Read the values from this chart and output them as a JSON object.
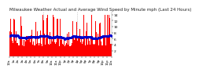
{
  "title": "Milwaukee Weather Actual and Average Wind Speed by Minute mph (Last 24 Hours)",
  "n_points": 1440,
  "bar_color": "#ff0000",
  "line_color": "#0000cc",
  "background_color": "#ffffff",
  "plot_bg_color": "#ffffff",
  "ylim": [
    0,
    15
  ],
  "yticks": [
    2,
    4,
    6,
    8,
    10,
    12,
    14
  ],
  "title_fontsize": 4.0,
  "tick_fontsize": 3.2,
  "grid_color": "#aaaaaa"
}
